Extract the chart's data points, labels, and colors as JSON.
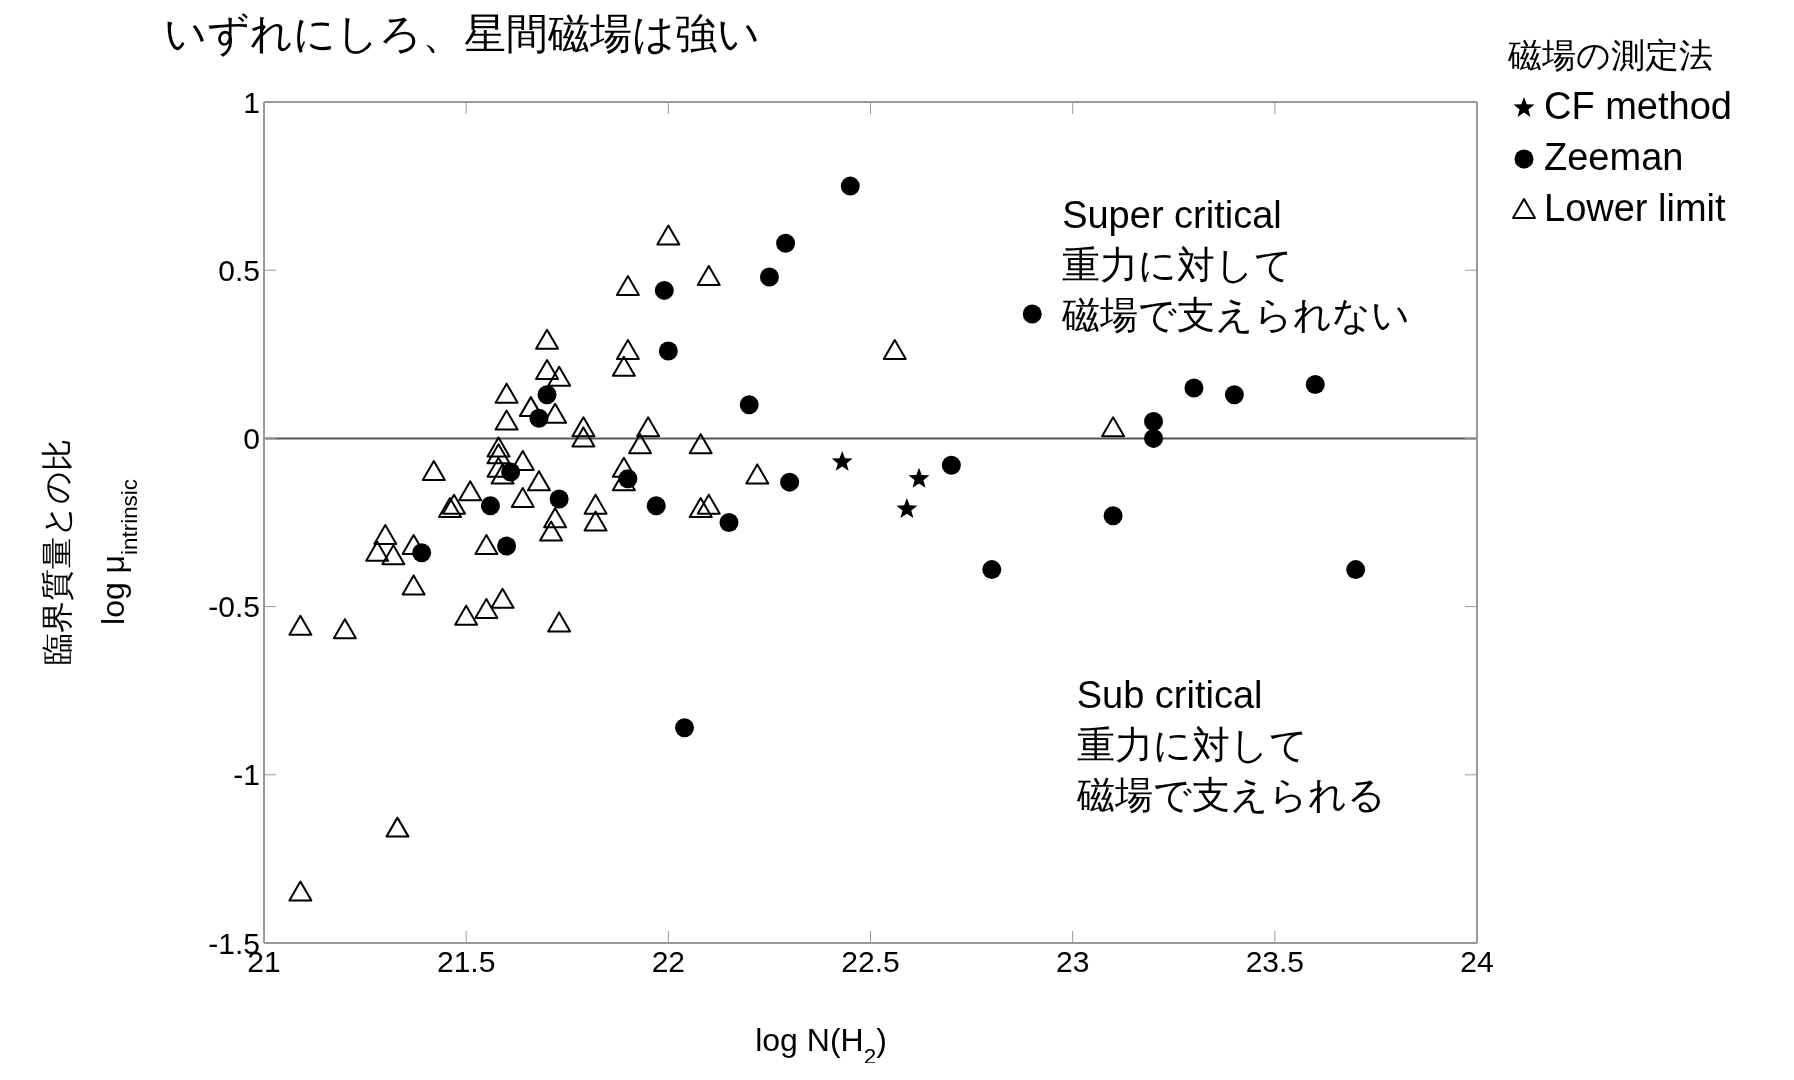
{
  "chart_data": {
    "type": "scatter",
    "title": "いずれにしろ、星間磁場は強い",
    "xlabel": "log N(H$_{2}$)",
    "ylabel": "臨界質量との比\nlog μ$_{intrinsic}$",
    "legend_title": "磁場の測定法",
    "legend": "top right",
    "xlim": [
      21,
      24
    ],
    "xticks": [
      21,
      21.5,
      22,
      22.5,
      23,
      23.5,
      24
    ],
    "ylim": [
      -1.5,
      1
    ],
    "yticks": [
      -1.5,
      -1,
      -0.5,
      0,
      0.5,
      1
    ],
    "ref_lines": [
      {
        "axis": "y",
        "value": 0,
        "color": "#555555",
        "line_style": "solid"
      }
    ],
    "annotations": [
      "Super critical",
      "重力に対して",
      "磁場で支えられない",
      "Sub critical",
      "重力に対して",
      "磁場で支えられる"
    ],
    "series": [
      {
        "name": "CF method",
        "color": "#000000",
        "marker": "star",
        "x": [
          22.43,
          22.62,
          22.59
        ],
        "values": [
          -0.07,
          -0.12,
          -0.21
        ]
      },
      {
        "name": "Zeeman",
        "color": "#000000",
        "marker": "circle",
        "x": [
          21.39,
          21.56,
          21.6,
          21.61,
          21.68,
          21.7,
          21.73,
          21.9,
          21.99,
          22.0,
          21.97,
          22.04,
          22.15,
          22.2,
          22.25,
          22.29,
          22.3,
          22.45,
          22.7,
          22.8,
          22.9,
          23.1,
          23.2,
          23.2,
          23.3,
          23.4,
          23.6,
          23.7
        ],
        "values": [
          -0.34,
          -0.2,
          -0.32,
          -0.1,
          0.06,
          0.13,
          -0.18,
          -0.12,
          0.44,
          0.26,
          -0.2,
          -0.86,
          -0.25,
          0.1,
          0.48,
          0.58,
          -0.13,
          0.75,
          -0.08,
          -0.39,
          0.37,
          -0.23,
          0.05,
          0.0,
          0.15,
          0.13,
          0.16,
          -0.39
        ]
      },
      {
        "name": "Lower limit",
        "color": "#000000",
        "marker": "triangle",
        "x": [
          21.09,
          21.2,
          21.33,
          21.09,
          21.3,
          21.28,
          21.32,
          21.37,
          21.37,
          21.42,
          21.46,
          21.47,
          21.51,
          21.5,
          21.55,
          21.59,
          21.55,
          21.58,
          21.58,
          21.58,
          21.59,
          21.6,
          21.6,
          21.64,
          21.64,
          21.66,
          21.68,
          21.7,
          21.7,
          21.72,
          21.71,
          21.72,
          21.73,
          21.73,
          21.79,
          21.79,
          21.82,
          21.82,
          21.89,
          21.89,
          21.9,
          21.9,
          21.89,
          21.93,
          21.95,
          22.0,
          22.08,
          22.08,
          22.1,
          22.1,
          22.22,
          22.56,
          23.1
        ],
        "values": [
          -0.56,
          -0.57,
          -1.16,
          -1.35,
          -0.29,
          -0.34,
          -0.35,
          -0.44,
          -0.32,
          -0.1,
          -0.21,
          -0.2,
          -0.16,
          -0.53,
          -0.51,
          -0.48,
          -0.32,
          -0.03,
          -0.05,
          -0.09,
          -0.11,
          0.05,
          0.13,
          -0.18,
          -0.07,
          0.09,
          -0.13,
          0.29,
          0.2,
          -0.24,
          -0.28,
          0.07,
          0.18,
          -0.55,
          0.03,
          0.0,
          -0.2,
          -0.25,
          -0.09,
          0.21,
          0.26,
          0.45,
          -0.13,
          -0.02,
          0.03,
          0.6,
          -0.02,
          -0.21,
          -0.2,
          0.48,
          -0.11,
          0.26,
          0.03
        ]
      }
    ]
  }
}
